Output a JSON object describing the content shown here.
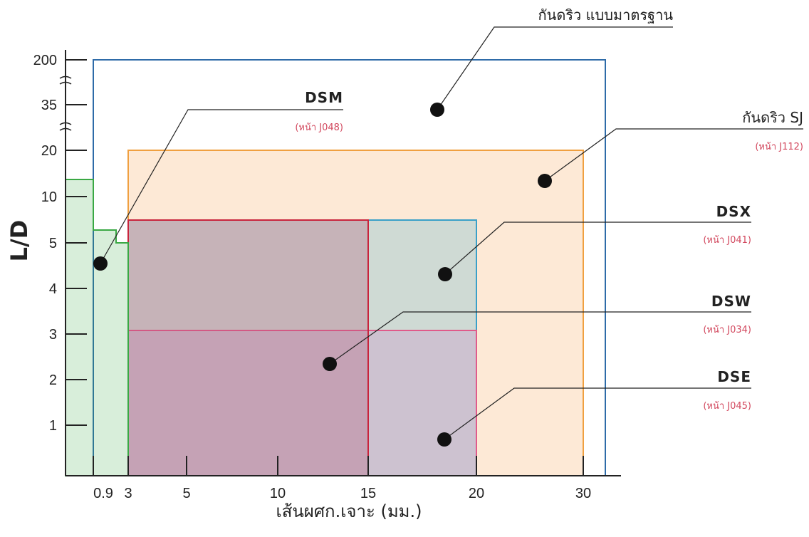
{
  "chart_data": {
    "type": "area",
    "xlabel": "เส้นผศก.เจาะ (มม.)",
    "ylabel": "L/D",
    "x_ticks": [
      "0.9",
      "3",
      "5",
      "10",
      "15",
      "20",
      "30"
    ],
    "y_ticks": [
      "1",
      "2",
      "3",
      "4",
      "5",
      "10",
      "20",
      "35",
      "200"
    ],
    "regions": [
      {
        "key": "standard",
        "title": "กันดริว แบบมาตรฐาน",
        "page": "",
        "x_range": [
          0.9,
          32
        ],
        "y_max": 200,
        "color": "#2e6ba8"
      },
      {
        "key": "sj",
        "title": "กันดริว SJ",
        "page": "(หน้า J112)",
        "x_range": [
          3,
          30
        ],
        "y_max": 20,
        "color": "#f0a040"
      },
      {
        "key": "dsx",
        "title": "DSX",
        "page": "(หน้า J041)",
        "x_range": [
          3,
          20
        ],
        "y_max": 5.5,
        "color": "#3aa0c8"
      },
      {
        "key": "dsw",
        "title": "DSW",
        "page": "(หน้า J034)",
        "x_range": [
          3,
          15
        ],
        "y_max": 5.5,
        "color": "#c8243c"
      },
      {
        "key": "dse",
        "title": "DSE",
        "page": "(หน้า J045)",
        "x_range": [
          3,
          20
        ],
        "y_max": 3,
        "color": "#e05a8a"
      },
      {
        "key": "dsm",
        "title": "DSM",
        "page": "(หน้า J048)",
        "steps": [
          {
            "x_range": [
              0,
              0.9
            ],
            "y_max": 13
          },
          {
            "x_range": [
              0.9,
              2
            ],
            "y_max": 5.3
          },
          {
            "x_range": [
              2,
              3
            ],
            "y_max": 5
          }
        ],
        "color": "#3aa844"
      }
    ]
  }
}
